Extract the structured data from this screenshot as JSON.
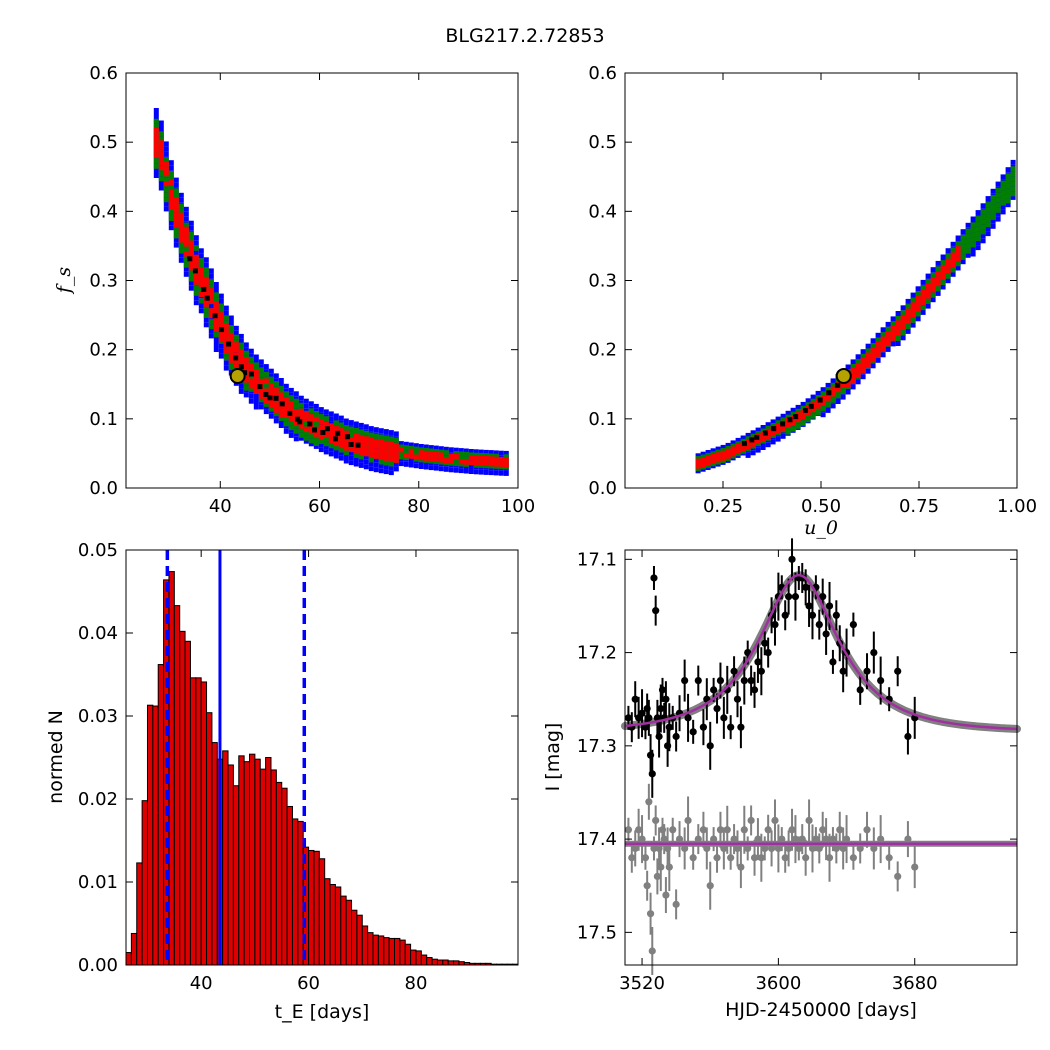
{
  "figure": {
    "title": "BLG217.2.72853",
    "background": "#ffffff"
  },
  "colors": {
    "sigma1": "#ff0000",
    "sigma2": "#008000",
    "sigma3": "#0000ff",
    "best_chain": "#000000",
    "best_fit_marker_fill": "#b5a200",
    "hist_fill": "#dd0000",
    "median_line": "#0000ff",
    "model": "#a030a0",
    "model_band": "#808080",
    "data_points": "#000000",
    "residual_points": "#808080"
  },
  "chart_data": [
    {
      "id": "fs_vs_tE",
      "type": "heatmap",
      "title": "",
      "xlabel": "",
      "ylabel": "f_s",
      "xlim": [
        21,
        100
      ],
      "ylim": [
        0.0,
        0.6
      ],
      "xticks": [
        "40",
        "60",
        "80",
        "100"
      ],
      "yticks": [
        "0.0",
        "0.1",
        "0.2",
        "0.3",
        "0.4",
        "0.5",
        "0.6"
      ],
      "grid": false,
      "ridge": {
        "x": [
          27,
          29,
          31,
          33,
          35,
          37,
          39,
          41,
          43,
          45,
          47,
          50,
          53,
          56,
          60,
          65,
          70,
          75,
          80,
          85,
          90,
          95,
          98
        ],
        "y": [
          0.5,
          0.44,
          0.39,
          0.35,
          0.31,
          0.28,
          0.245,
          0.215,
          0.19,
          0.17,
          0.155,
          0.135,
          0.115,
          0.1,
          0.085,
          0.07,
          0.06,
          0.053,
          0.048,
          0.044,
          0.041,
          0.039,
          0.038
        ]
      },
      "best_fit": {
        "x": 43.5,
        "y": 0.162
      }
    },
    {
      "id": "fs_vs_u0",
      "type": "heatmap",
      "title": "",
      "xlabel": "u_0",
      "ylabel": "",
      "xlim": [
        0.0,
        1.0
      ],
      "ylim": [
        0.0,
        0.6
      ],
      "xticks": [
        "0.25",
        "0.50",
        "0.75",
        "1.00"
      ],
      "yticks": [
        "0.0",
        "0.1",
        "0.2",
        "0.3",
        "0.4",
        "0.5",
        "0.6"
      ],
      "grid": false,
      "ridge": {
        "x": [
          0.18,
          0.25,
          0.3,
          0.35,
          0.4,
          0.45,
          0.5,
          0.55,
          0.6,
          0.65,
          0.7,
          0.75,
          0.8,
          0.85,
          0.9,
          0.95,
          1.0
        ],
        "y": [
          0.038,
          0.05,
          0.063,
          0.077,
          0.092,
          0.108,
          0.128,
          0.152,
          0.18,
          0.21,
          0.24,
          0.275,
          0.31,
          0.345,
          0.38,
          0.42,
          0.46
        ]
      },
      "best_fit": {
        "x": 0.558,
        "y": 0.162
      }
    },
    {
      "id": "tE_histogram",
      "type": "bar",
      "title": "",
      "xlabel": "t_E [days]",
      "ylabel": "normed N",
      "xlim": [
        26,
        99
      ],
      "ylim": [
        0.0,
        0.05
      ],
      "xticks": [
        "40",
        "60",
        "80"
      ],
      "yticks": [
        "0.00",
        "0.01",
        "0.02",
        "0.03",
        "0.04",
        "0.05"
      ],
      "grid": false,
      "bins": {
        "left_edges": [
          26.0,
          27.0,
          28.0,
          29.0,
          30.0,
          31.0,
          32.0,
          33.0,
          34.0,
          35.0,
          36.0,
          37.0,
          38.0,
          39.0,
          40.0,
          41.0,
          42.0,
          43.0,
          44.0,
          45.0,
          46.0,
          47.0,
          48.0,
          49.0,
          50.0,
          51.0,
          52.0,
          53.0,
          54.0,
          55.0,
          56.0,
          57.0,
          58.0,
          59.0,
          60.0,
          61.0,
          62.0,
          63.0,
          64.0,
          65.0,
          66.0,
          67.0,
          68.0,
          69.0,
          70.0,
          71.0,
          72.0,
          73.0,
          74.0,
          75.0,
          76.0,
          77.0,
          78.0,
          79.0,
          80.0,
          81.0,
          82.0,
          83.0,
          84.0,
          85.0,
          86.0,
          87.0,
          88.0,
          89.0,
          90.0,
          91.0,
          92.0,
          93.0,
          94.0,
          95.0,
          96.0,
          97.0,
          98.0
        ],
        "width": 1.0,
        "values": [
          0.0015,
          0.0038,
          0.0123,
          0.0198,
          0.0313,
          0.0312,
          0.0362,
          0.0464,
          0.0474,
          0.0433,
          0.0402,
          0.039,
          0.0346,
          0.0346,
          0.0341,
          0.0304,
          0.0268,
          0.0248,
          0.0258,
          0.0241,
          0.0216,
          0.0252,
          0.0245,
          0.0254,
          0.0248,
          0.0236,
          0.025,
          0.0235,
          0.022,
          0.0213,
          0.0191,
          0.0176,
          0.0173,
          0.0142,
          0.0138,
          0.0137,
          0.0128,
          0.0104,
          0.0097,
          0.0094,
          0.0083,
          0.0078,
          0.0066,
          0.006,
          0.0047,
          0.0039,
          0.0036,
          0.0035,
          0.0033,
          0.0032,
          0.0032,
          0.003,
          0.0025,
          0.0018,
          0.0017,
          0.0012,
          0.0009,
          0.0007,
          0.0006,
          0.0006,
          0.0005,
          0.0005,
          0.0004,
          0.0003,
          0.0002,
          0.0002,
          0.0002,
          0.0002,
          0.0001,
          0.0001,
          0.0001,
          0.0001,
          0.0001
        ]
      },
      "median": 43.5,
      "interval": [
        33.7,
        59.2
      ]
    },
    {
      "id": "lightcurve",
      "type": "scatter",
      "title": "",
      "xlabel": "HJD-2450000 [days]",
      "ylabel": "I [mag]",
      "xlim": [
        3510,
        3740
      ],
      "ylim": [
        17.535,
        17.09
      ],
      "y_inverted": true,
      "xticks": [
        "3520",
        "3600",
        "3680"
      ],
      "yticks": [
        "17.1",
        "17.2",
        "17.3",
        "17.4",
        "17.5"
      ],
      "grid": false,
      "model": {
        "t0": 3612,
        "baseline": 17.285,
        "peak": 17.117,
        "u0": 0.56,
        "tE": 43.5,
        "fs": 0.162
      },
      "residual_offset": 17.405,
      "series": [
        {
          "role": "data",
          "x": [
            3512,
            3514,
            3516,
            3518,
            3520,
            3522,
            3523,
            3524,
            3525,
            3526,
            3527,
            3528,
            3529,
            3530,
            3531,
            3532,
            3533,
            3534,
            3535,
            3536,
            3538,
            3540,
            3542,
            3545,
            3547,
            3550,
            3553,
            3556,
            3558,
            3560,
            3562,
            3564,
            3566,
            3568,
            3570,
            3572,
            3574,
            3576,
            3578,
            3580,
            3582,
            3584,
            3586,
            3588,
            3590,
            3592,
            3594,
            3596,
            3598,
            3600,
            3602,
            3604,
            3606,
            3608,
            3610,
            3612,
            3614,
            3616,
            3618,
            3620,
            3622,
            3624,
            3626,
            3628,
            3630,
            3632,
            3634,
            3636,
            3638,
            3640,
            3644,
            3648,
            3652,
            3656,
            3660,
            3665,
            3670,
            3676,
            3680
          ],
          "y": [
            17.27,
            17.28,
            17.25,
            17.27,
            17.265,
            17.28,
            17.26,
            17.27,
            17.31,
            17.33,
            17.12,
            17.155,
            17.27,
            17.29,
            17.26,
            17.24,
            17.27,
            17.25,
            17.3,
            17.28,
            17.27,
            17.29,
            17.265,
            17.23,
            17.27,
            17.285,
            17.23,
            17.28,
            17.25,
            17.3,
            17.24,
            17.26,
            17.23,
            17.27,
            17.24,
            17.28,
            17.22,
            17.25,
            17.28,
            17.23,
            17.2,
            17.23,
            17.24,
            17.21,
            17.22,
            17.19,
            17.2,
            17.16,
            17.17,
            17.14,
            17.13,
            17.16,
            17.14,
            17.1,
            17.14,
            17.12,
            17.12,
            17.13,
            17.15,
            17.16,
            17.13,
            17.17,
            17.14,
            17.18,
            17.15,
            17.21,
            17.16,
            17.19,
            17.22,
            17.2,
            17.17,
            17.24,
            17.22,
            17.2,
            17.23,
            17.25,
            17.22,
            17.29,
            17.27
          ]
        },
        {
          "role": "residuals",
          "x": [
            3512,
            3514,
            3516,
            3518,
            3520,
            3522,
            3523,
            3524,
            3525,
            3526,
            3527,
            3528,
            3529,
            3530,
            3531,
            3532,
            3533,
            3534,
            3535,
            3536,
            3538,
            3540,
            3542,
            3545,
            3547,
            3550,
            3553,
            3556,
            3558,
            3560,
            3562,
            3564,
            3566,
            3568,
            3570,
            3572,
            3574,
            3576,
            3578,
            3580,
            3582,
            3584,
            3586,
            3588,
            3590,
            3592,
            3594,
            3596,
            3598,
            3600,
            3602,
            3604,
            3606,
            3608,
            3610,
            3612,
            3614,
            3616,
            3618,
            3620,
            3622,
            3624,
            3626,
            3628,
            3630,
            3632,
            3634,
            3636,
            3638,
            3640,
            3644,
            3648,
            3652,
            3656,
            3660,
            3665,
            3670,
            3676,
            3680
          ],
          "y": [
            17.39,
            17.42,
            17.41,
            17.39,
            17.4,
            17.42,
            17.45,
            17.36,
            17.48,
            17.52,
            17.41,
            17.38,
            17.44,
            17.41,
            17.43,
            17.39,
            17.4,
            17.46,
            17.41,
            17.43,
            17.39,
            17.47,
            17.4,
            17.41,
            17.38,
            17.42,
            17.4,
            17.39,
            17.41,
            17.45,
            17.4,
            17.42,
            17.39,
            17.41,
            17.39,
            17.42,
            17.4,
            17.41,
            17.43,
            17.39,
            17.41,
            17.38,
            17.42,
            17.4,
            17.42,
            17.41,
            17.39,
            17.41,
            17.38,
            17.41,
            17.4,
            17.42,
            17.41,
            17.39,
            17.4,
            17.41,
            17.4,
            17.42,
            17.38,
            17.41,
            17.4,
            17.41,
            17.39,
            17.4,
            17.42,
            17.4,
            17.41,
            17.39,
            17.41,
            17.4,
            17.42,
            17.41,
            17.39,
            17.41,
            17.4,
            17.42,
            17.44,
            17.4,
            17.43
          ]
        }
      ]
    }
  ]
}
